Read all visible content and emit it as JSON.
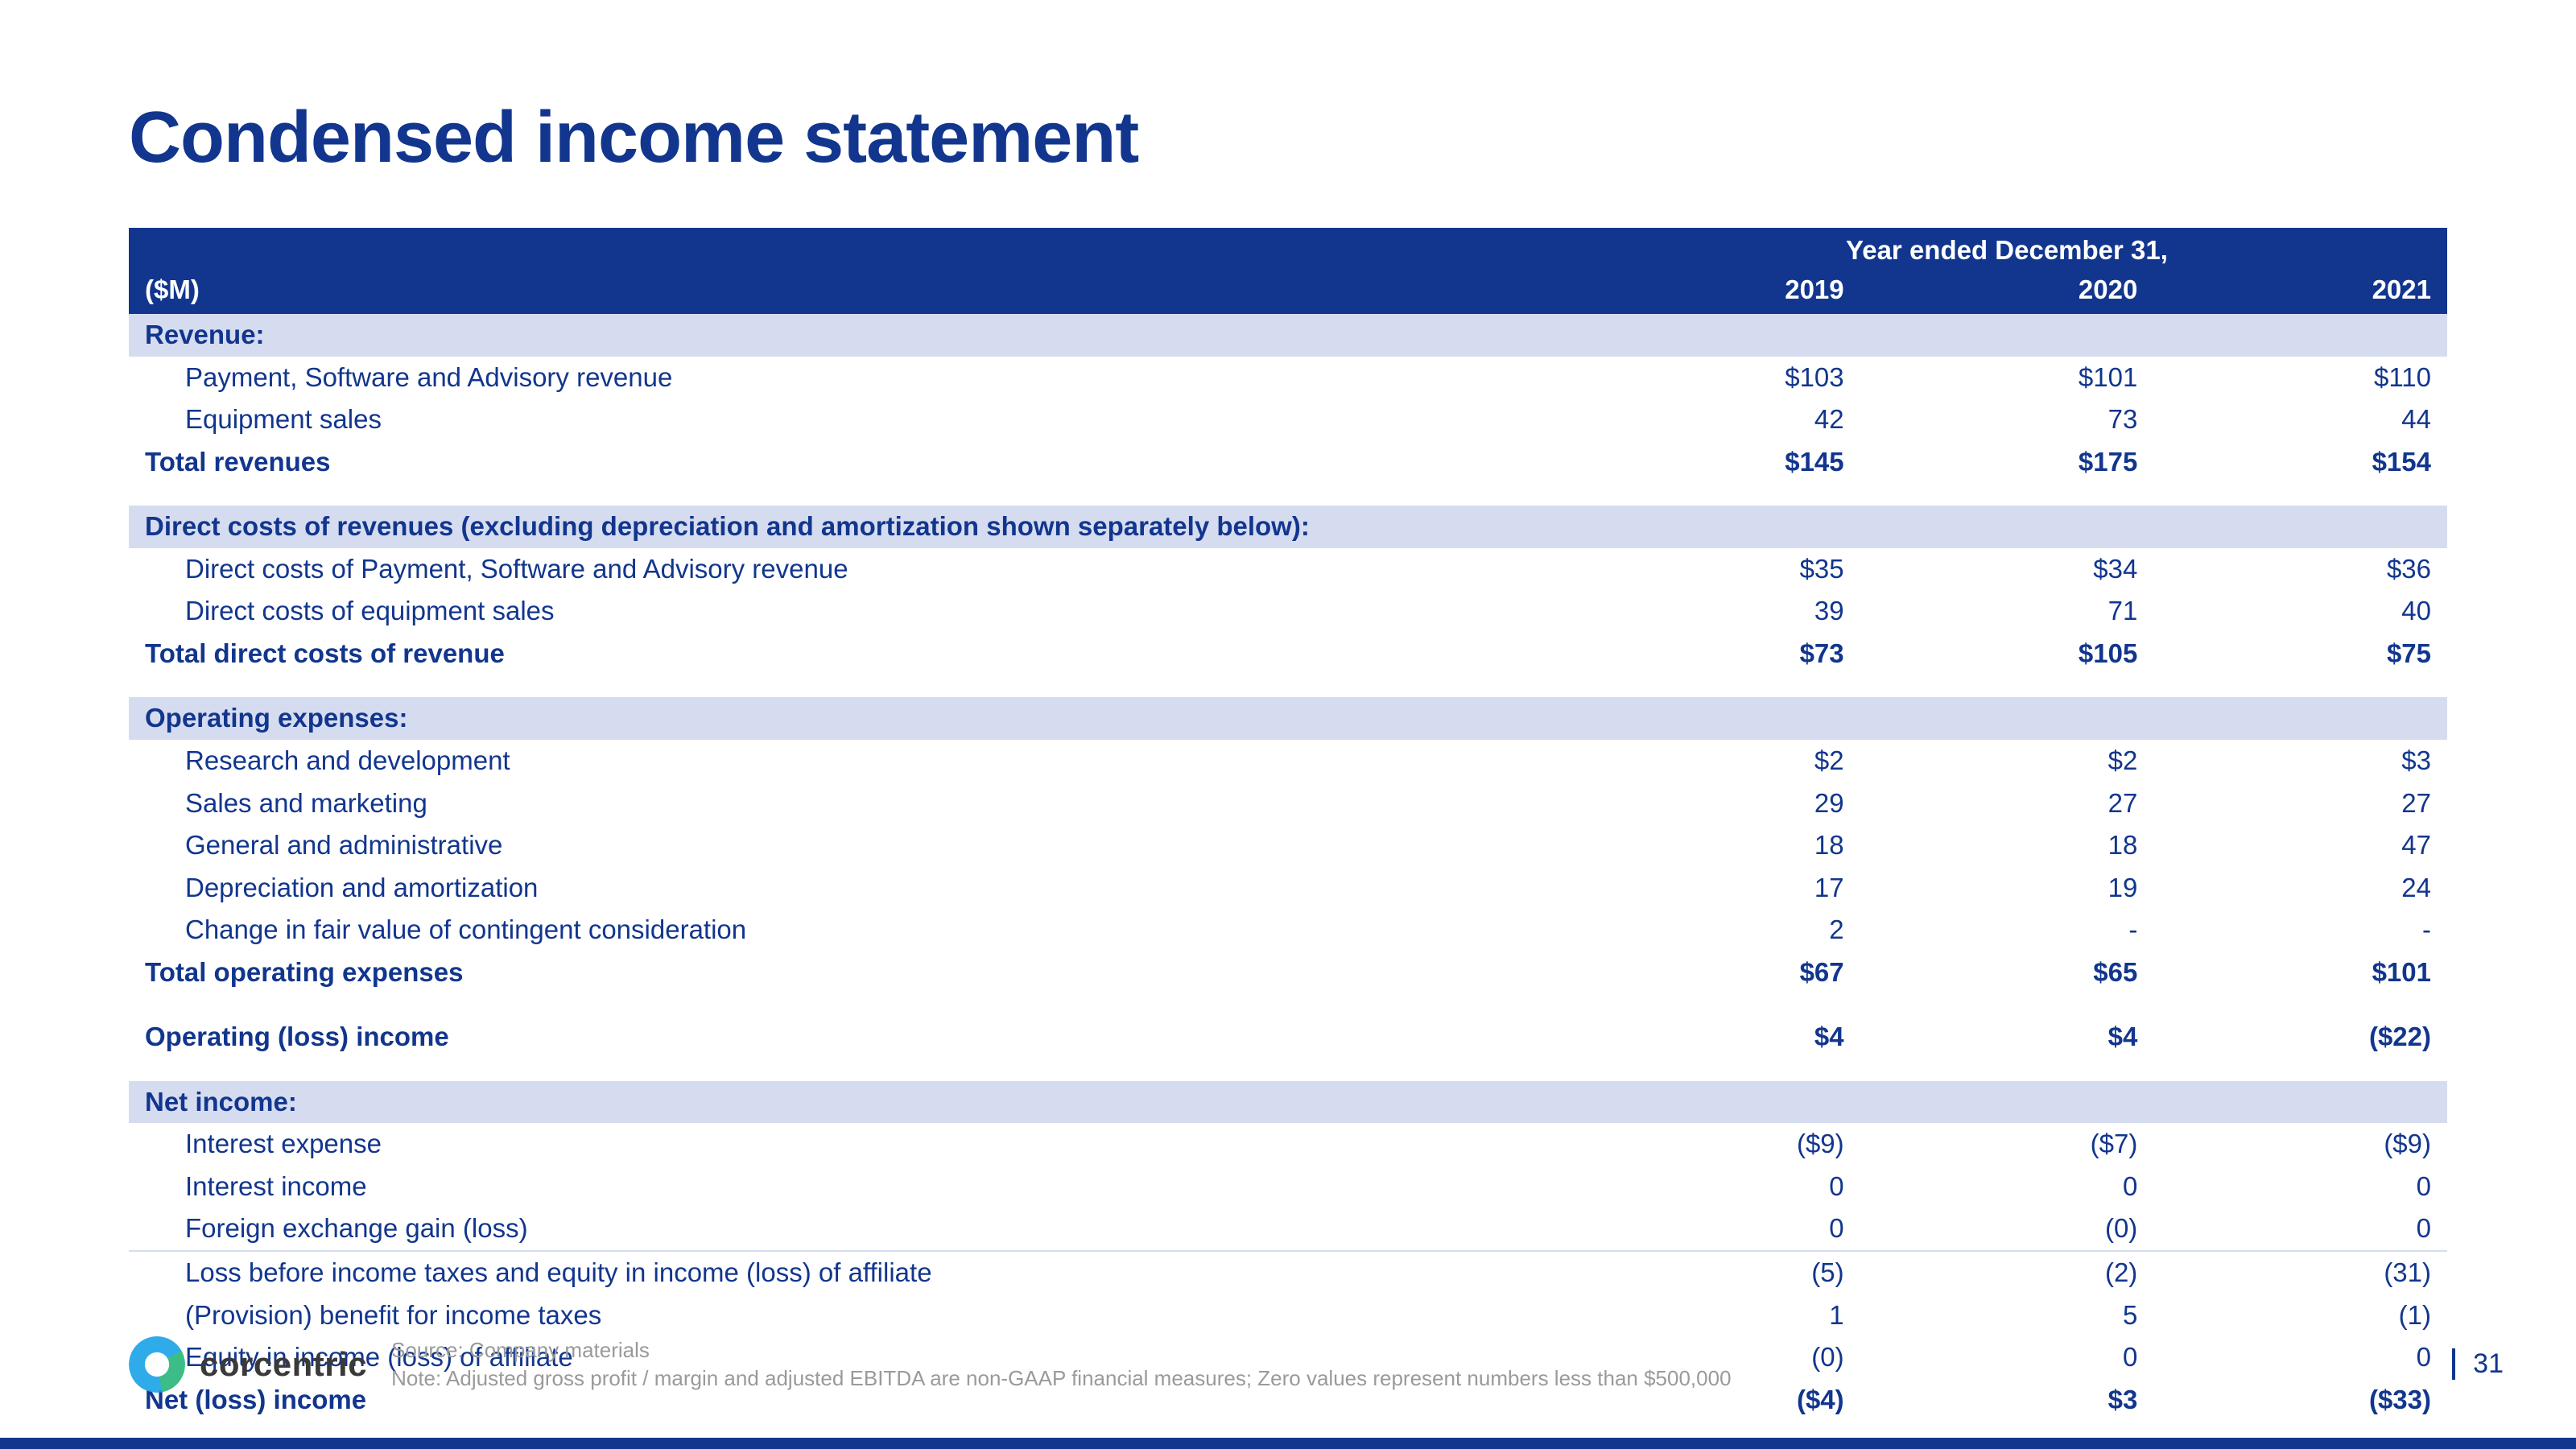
{
  "title": "Condensed income statement",
  "header": {
    "year_ended": "Year ended December 31,",
    "unit": "($M)",
    "y2019": "2019",
    "y2020": "2020",
    "y2021": "2021"
  },
  "revenue": {
    "section": "Revenue:",
    "psa": {
      "label": "Payment, Software and Advisory revenue",
      "v19": "$103",
      "v20": "$101",
      "v21": "$110"
    },
    "equip": {
      "label": "Equipment sales",
      "v19": "42",
      "v20": "73",
      "v21": "44"
    },
    "total": {
      "label": "Total revenues",
      "v19": "$145",
      "v20": "$175",
      "v21": "$154"
    }
  },
  "direct": {
    "section": "Direct costs of revenues (excluding depreciation and amortization shown separately below):",
    "psa": {
      "label": "Direct costs of Payment, Software and Advisory revenue",
      "v19": "$35",
      "v20": "$34",
      "v21": "$36"
    },
    "equip": {
      "label": "Direct costs of equipment sales",
      "v19": "39",
      "v20": "71",
      "v21": "40"
    },
    "total": {
      "label": "Total direct costs of revenue",
      "v19": "$73",
      "v20": "$105",
      "v21": "$75"
    }
  },
  "opex": {
    "section": "Operating expenses:",
    "rnd": {
      "label": "Research and development",
      "v19": "$2",
      "v20": "$2",
      "v21": "$3"
    },
    "sm": {
      "label": "Sales and marketing",
      "v19": "29",
      "v20": "27",
      "v21": "27"
    },
    "ga": {
      "label": "General and administrative",
      "v19": "18",
      "v20": "18",
      "v21": "47"
    },
    "da": {
      "label": "Depreciation and amortization",
      "v19": "17",
      "v20": "19",
      "v21": "24"
    },
    "fv": {
      "label": "Change in fair value of contingent consideration",
      "v19": "2",
      "v20": "-",
      "v21": "-"
    },
    "total": {
      "label": "Total operating expenses",
      "v19": "$67",
      "v20": "$65",
      "v21": "$101"
    }
  },
  "opinc": {
    "label": "Operating (loss) income",
    "v19": "$4",
    "v20": "$4",
    "v21": "($22)"
  },
  "netinc": {
    "section": "Net income:",
    "intex": {
      "label": "Interest expense",
      "v19": "($9)",
      "v20": "($7)",
      "v21": "($9)"
    },
    "intin": {
      "label": "Interest income",
      "v19": "0",
      "v20": "0",
      "v21": "0"
    },
    "fx": {
      "label": "Foreign exchange gain (loss)",
      "v19": "0",
      "v20": "(0)",
      "v21": "0"
    },
    "lbit": {
      "label": "Loss before income taxes and equity in income (loss) of affiliate",
      "v19": "(5)",
      "v20": "(2)",
      "v21": "(31)"
    },
    "tax": {
      "label": "(Provision) benefit for income taxes",
      "v19": "1",
      "v20": "5",
      "v21": "(1)"
    },
    "eqaff": {
      "label": "Equity in income (loss) of affiliate",
      "v19": "(0)",
      "v20": "0",
      "v21": "0"
    },
    "total": {
      "label": "Net (loss) income",
      "v19": "($4)",
      "v20": "$3",
      "v21": "($33)"
    }
  },
  "footer": {
    "logo": "corcentric",
    "source": "Source: Company materials",
    "note": "Note: Adjusted gross profit / margin and adjusted EBITDA are non-GAAP financial measures; Zero values represent numbers less than $500,000",
    "page": "31"
  },
  "colors": {
    "brand_navy": "#12368e",
    "row_shade": "#d6dcf0",
    "footnote_grey": "#9a9a9a",
    "background": "#ffffff"
  }
}
